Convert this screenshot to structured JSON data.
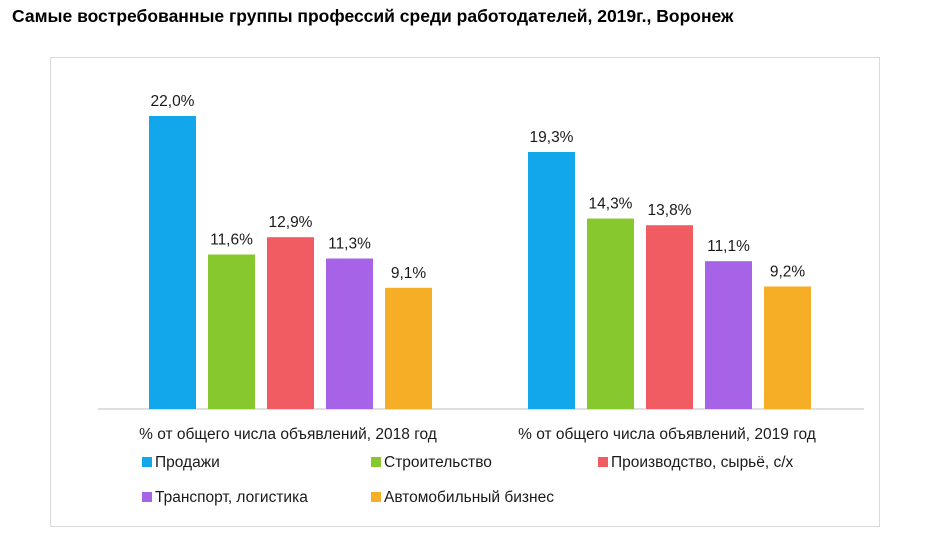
{
  "title": "Самые востребованные группы профессий среди работодателей, 2019г., Воронеж",
  "chart_data": {
    "type": "bar",
    "categories": [
      "% от общего числа объявлений, 2018 год",
      "% от общего числа объявлений, 2019 год"
    ],
    "series": [
      {
        "name": "Продажи",
        "color": "#12a7eb",
        "values": [
          22.0,
          19.3
        ],
        "labels": [
          "22,0%",
          "19,3%"
        ]
      },
      {
        "name": "Строительство",
        "color": "#88c82f",
        "values": [
          11.6,
          14.3
        ],
        "labels": [
          "11,6%",
          "14,3%"
        ]
      },
      {
        "name": "Производство, сырьё, с/х",
        "color": "#f15c62",
        "values": [
          12.9,
          13.8
        ],
        "labels": [
          "12,9%",
          "13,8%"
        ]
      },
      {
        "name": "Транспорт, логистика",
        "color": "#a663e8",
        "values": [
          11.3,
          11.1
        ],
        "labels": [
          "11,3%",
          "11,1%"
        ]
      },
      {
        "name": "Автомобильный бизнес",
        "color": "#f7ae27",
        "values": [
          9.1,
          9.2
        ],
        "labels": [
          "9,1%",
          "9,2%"
        ]
      }
    ],
    "ylim": [
      0,
      22
    ],
    "grid": false,
    "legend": "bottom"
  }
}
